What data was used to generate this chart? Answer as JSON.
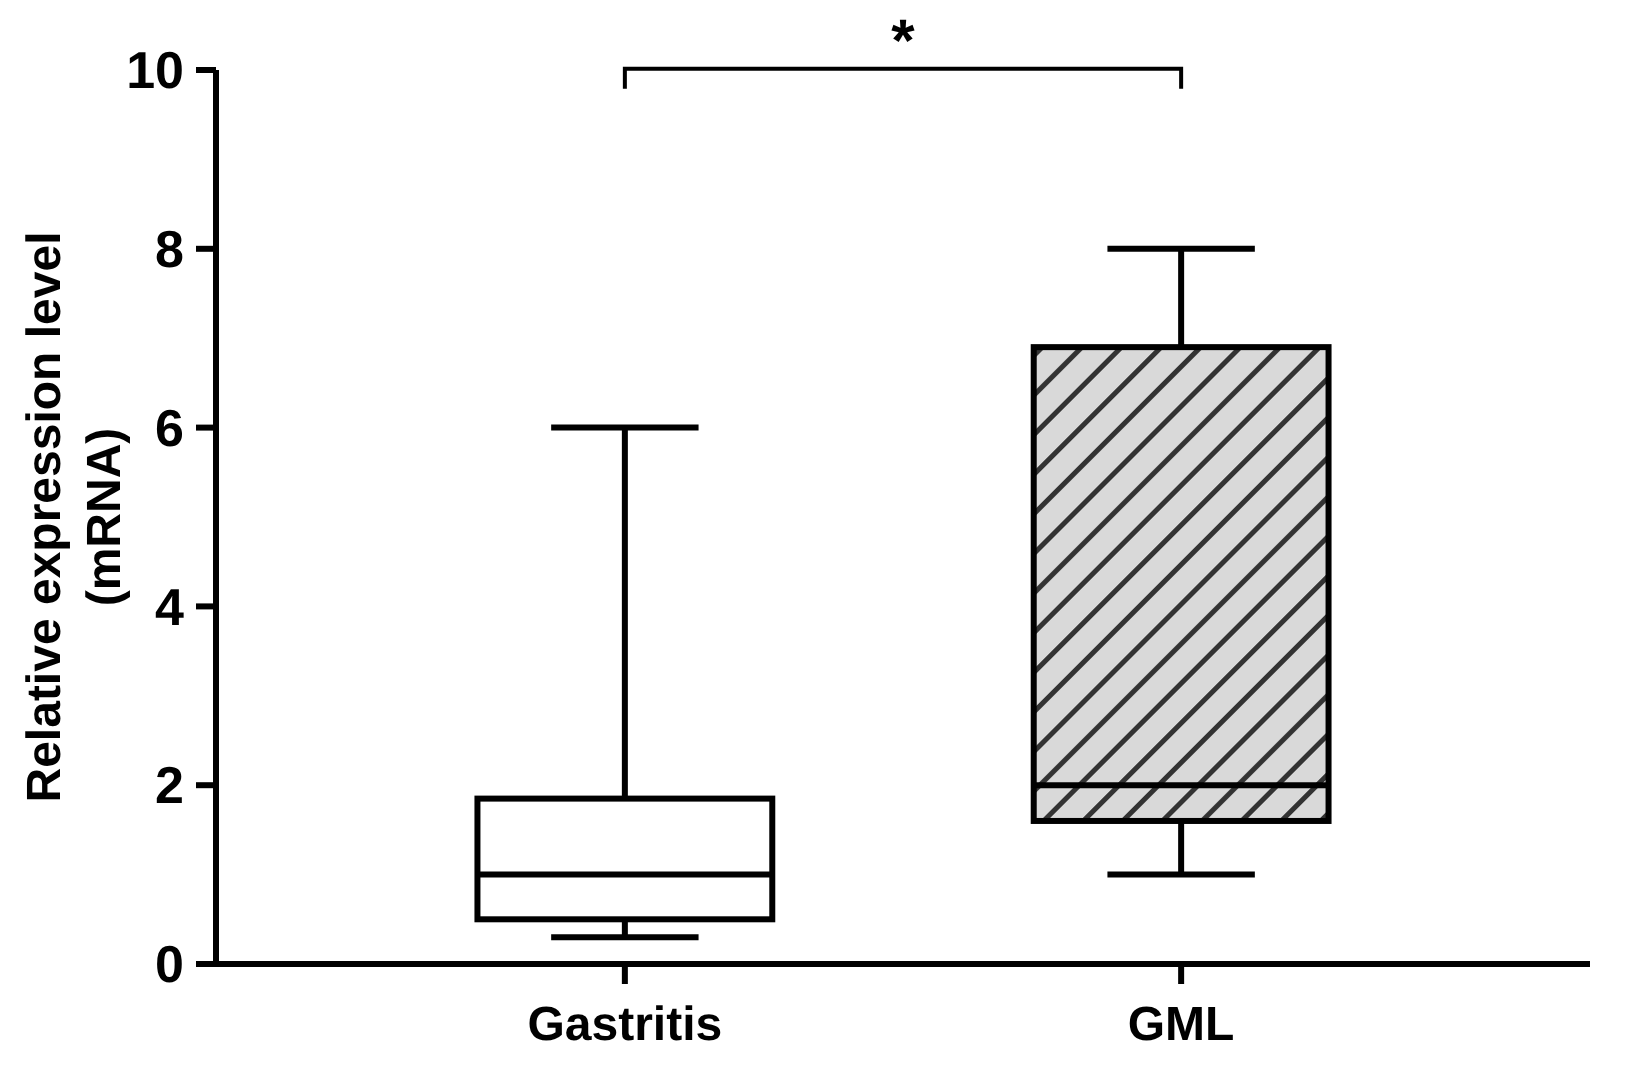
{
  "chart_data": {
    "type": "box",
    "ylabel": "Relative expression level\n(mRNA)",
    "categories": [
      "Gastritis",
      "GML"
    ],
    "boxes": [
      {
        "low": 0.3,
        "q1": 0.5,
        "median": 1.0,
        "q3": 1.85,
        "high": 6.0
      },
      {
        "low": 1.0,
        "q1": 1.6,
        "median": 2.0,
        "q3": 6.9,
        "high": 8.0
      }
    ],
    "ylim": [
      0,
      10
    ],
    "yticks": [
      0,
      2,
      4,
      6,
      8,
      10
    ],
    "grid": false,
    "annotations": [
      "*"
    ]
  }
}
